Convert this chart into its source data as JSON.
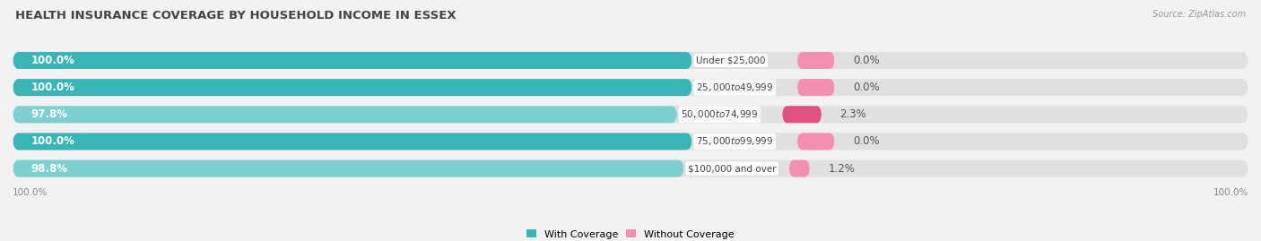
{
  "title": "HEALTH INSURANCE COVERAGE BY HOUSEHOLD INCOME IN ESSEX",
  "source": "Source: ZipAtlas.com",
  "categories": [
    "Under $25,000",
    "$25,000 to $49,999",
    "$50,000 to $74,999",
    "$75,000 to $99,999",
    "$100,000 and over"
  ],
  "with_coverage": [
    100.0,
    100.0,
    97.8,
    100.0,
    98.8
  ],
  "without_coverage": [
    0.0,
    0.0,
    2.3,
    0.0,
    1.2
  ],
  "color_with": "#3ab5b5",
  "color_with_light": "#7dd0d0",
  "color_without": "#f48fb1",
  "color_without_dark": "#e05080",
  "bg_color": "#f2f2f2",
  "bar_bg_color": "#e0e0e0",
  "title_fontsize": 9.5,
  "label_fontsize": 8.5,
  "cat_fontsize": 7.5,
  "tick_fontsize": 7.5,
  "legend_fontsize": 8,
  "source_fontsize": 7,
  "bar_height": 0.62,
  "total_width": 100.0,
  "max_bar_pct": 55.0,
  "note_98": "97.8%",
  "note_988": "98.8%"
}
